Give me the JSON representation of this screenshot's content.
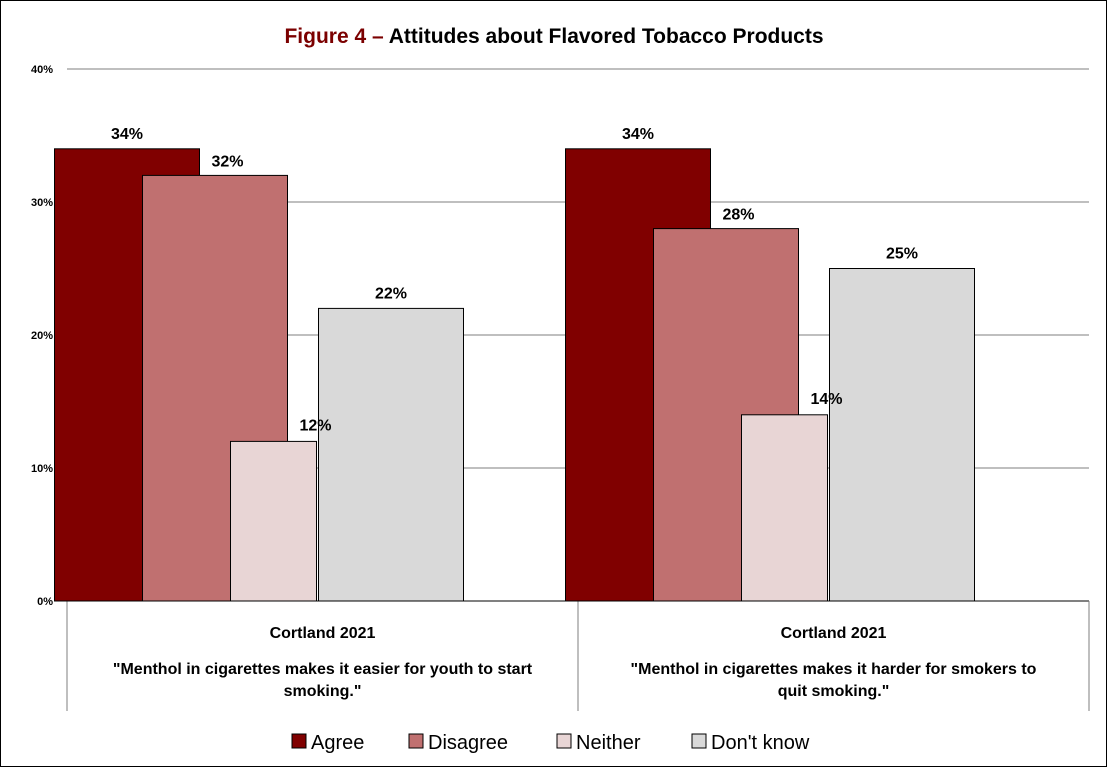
{
  "chart_data": {
    "type": "bar",
    "title_prefix": "Figure 4 –",
    "title_main": " Attitudes about Flavored Tobacco Products",
    "title_prefix_color": "#7B0000",
    "ylim": [
      0,
      40
    ],
    "yticks": [
      "0%",
      "10%",
      "20%",
      "30%",
      "40%"
    ],
    "grid": true,
    "legend_position": "bottom",
    "categories": [
      {
        "group": "Cortland 2021",
        "label_lines": [
          "\"Menthol in cigarettes makes it easier for youth to start",
          "smoking.\""
        ]
      },
      {
        "group": "Cortland 2021",
        "label_lines": [
          "\"Menthol in cigarettes makes it harder for smokers to",
          "quit smoking.\""
        ]
      }
    ],
    "series": [
      {
        "name": "Agree",
        "color": "#800000",
        "values": [
          34,
          34
        ],
        "labels": [
          "34%",
          "34%"
        ]
      },
      {
        "name": "Disagree",
        "color": "#C07070",
        "values": [
          32,
          28
        ],
        "labels": [
          "32%",
          "28%"
        ]
      },
      {
        "name": "Neither",
        "color": "#E8D5D5",
        "values": [
          12,
          14
        ],
        "labels": [
          "12%",
          "14%"
        ]
      },
      {
        "name": "Don't know",
        "color": "#D9D9D9",
        "values": [
          22,
          25
        ],
        "labels": [
          "22%",
          "25%"
        ]
      }
    ]
  }
}
